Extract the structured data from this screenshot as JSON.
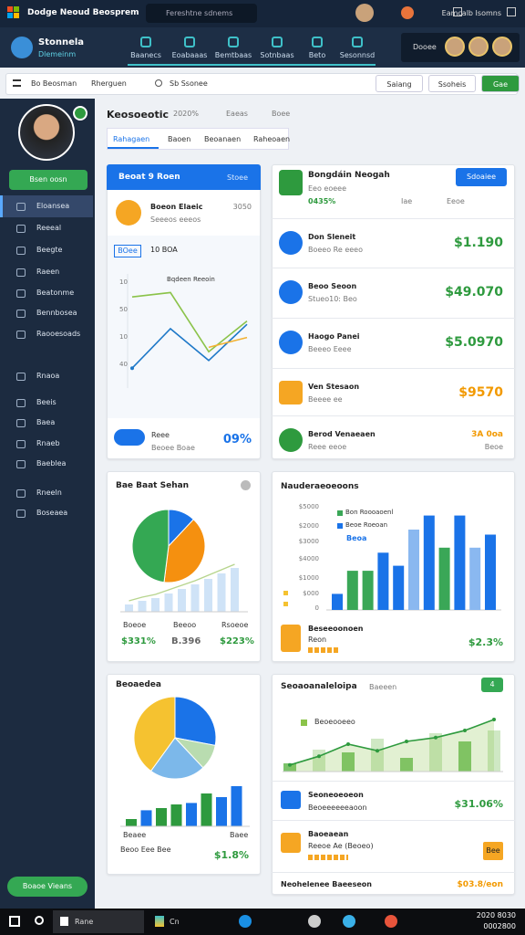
{
  "topbar": {
    "title": "Dodge Neoud Beosprem",
    "search": "Fereshtne sdnems",
    "account": "Eamcalb Isomns"
  },
  "appbar": {
    "brand": "Stonnela",
    "brand_sub": "Dlemeinm",
    "tabs": [
      "Baanecs",
      "Eoabaaas",
      "Bemtbaas",
      "Sotnbaas",
      "Beto",
      "Sesonnsd"
    ],
    "user": "Dooee"
  },
  "toolbar": {
    "menu": "Bo Beosman",
    "dropdown": "Rherguen",
    "search": "Sb Ssonee",
    "buttons": [
      "Saiang",
      "Ssoheis",
      "Gae"
    ]
  },
  "sidebar": {
    "button": "Bsen oosn",
    "items": [
      "Eloansea",
      "Reeeal",
      "Beegte",
      "Raeen",
      "Beatonme",
      "Bennbosea",
      "Raooesoads"
    ],
    "items2": [
      "Rnaoa",
      "Beeis",
      "Baea",
      "Rnaeb",
      "Baeblea",
      "Rneeln",
      "Boseaea"
    ],
    "footer_button": "Boaoe Vieans"
  },
  "header": {
    "title": "Keosoeotic",
    "badge": "2020%",
    "links": [
      "Eaeas",
      "Boee"
    ],
    "tabs": [
      "Rahagaen",
      "Baoen",
      "Beoanaen",
      "Raheoaen"
    ]
  },
  "card_trend": {
    "header": "Beoat 9 Roen",
    "header_right": "Stoee",
    "item": "Boeon Elaeic",
    "item_sub": "Seeeos eeeos",
    "item_value": "3050",
    "tag": "BOee",
    "tag_value": "10 BOA",
    "chart": {
      "type": "line",
      "title": "Bqdeen Reeoin",
      "axis_labels": [
        "10",
        "50",
        "10",
        "40"
      ],
      "ylim": [
        0,
        100
      ],
      "series": [
        {
          "color": "#8bc34a",
          "values": [
            79,
            83,
            29,
            57
          ]
        },
        {
          "color": "#1e78c8",
          "values": [
            14,
            50,
            21,
            54
          ]
        },
        {
          "color": "#f2b233",
          "values": [
            null,
            null,
            33,
            42
          ]
        }
      ]
    },
    "footer_label": "Reee",
    "footer_sub": "Beoee Boae",
    "footer_value": "09%"
  },
  "card_list": {
    "title": "Bongdáin Neogah",
    "subtitle": "Eeo eoeee",
    "stat": "0435%",
    "stat2": "Iae",
    "stat3": "Eeoe",
    "button": "Sdoaiee",
    "rows": [
      {
        "name": "Don Sleneit",
        "sub": "Boeeo Re eeeo",
        "value": "$1.190",
        "color": "#2e9a3e"
      },
      {
        "name": "Beoo Seoon",
        "sub": "Stueo10: Beo",
        "value": "$49.070",
        "color": "#2e9a3e"
      },
      {
        "name": "Haogo Panei",
        "sub": "Beeeo Eeee",
        "value": "$5.0970",
        "color": "#2e9a3e"
      },
      {
        "name": "Ven Stesaon",
        "sub": "Beeee ee",
        "value": "$9570",
        "color": "#f29900"
      },
      {
        "name": "Berod Venaeaen",
        "sub": "Reee eeoe",
        "value": "3A 0oa",
        "color": "#f29900",
        "note": "Beoe"
      }
    ]
  },
  "card_pie": {
    "title": "Bae Baat Sehan",
    "pie": {
      "type": "pie",
      "values": [
        12,
        40,
        48
      ],
      "colors": [
        "#1a73e8",
        "#f5900f",
        "#34a853"
      ]
    },
    "bars": {
      "type": "bar",
      "ylim": [
        0,
        100
      ],
      "values": [
        8,
        12,
        15,
        20,
        25,
        30,
        36,
        42,
        48
      ],
      "color": "#cfe3f7"
    },
    "stats": [
      {
        "label": "Boeoe",
        "value": "$331%",
        "color": "#2e9a3e"
      },
      {
        "label": "Beeoo",
        "value": "B.396",
        "color": "#666666"
      },
      {
        "label": "Rsoeoe",
        "value": "$223%",
        "color": "#2e9a3e"
      }
    ]
  },
  "card_columns": {
    "title": "Nauderaeoeoons",
    "axis_labels": [
      "$5000",
      "$2000",
      "$3000",
      "$4000",
      "$1000",
      "$000",
      "0"
    ],
    "legend": [
      {
        "name": "Bon Roooaoenl",
        "color": "#3aa757"
      },
      {
        "name": "Beoe Roeoan",
        "color": "#1a73e8"
      }
    ],
    "note": "Beoa",
    "chart": {
      "type": "bar",
      "ylim": [
        0,
        100
      ],
      "values": [
        16,
        39,
        39,
        57,
        44,
        80,
        94,
        62,
        94,
        62,
        75
      ],
      "colors": [
        "#1a73e8",
        "#3aa757",
        "#3aa757",
        "#1a73e8",
        "#1a73e8",
        "#8ab8f0",
        "#1a73e8",
        "#3aa757",
        "#1a73e8",
        "#8ab8f0",
        "#1a73e8"
      ]
    },
    "footer": "Beseeoonoen",
    "footer_sub": "Reon",
    "footer_value": "$2.3%"
  },
  "card_donut": {
    "title": "Beoaedea",
    "pie": {
      "type": "pie",
      "values": [
        28,
        10,
        22,
        40
      ],
      "colors": [
        "#1a73e8",
        "#b9dcb0",
        "#7cb8ea",
        "#f5c230"
      ]
    },
    "bars": {
      "type": "bar",
      "ylim": [
        0,
        100
      ],
      "values": [
        10,
        22,
        25,
        30,
        32,
        45,
        40,
        55
      ],
      "colors": [
        "#2e9a3e",
        "#1a73e8",
        "#2e9a3e",
        "#2e9a3e",
        "#1a73e8",
        "#2e9a3e",
        "#1a73e8",
        "#1a73e8"
      ]
    },
    "labels": [
      "Beaee",
      "Baee"
    ],
    "footer": "Beoo Eee Bee",
    "footer_value": "$1.8%"
  },
  "card_area": {
    "title": "Seoaoanaleloipa",
    "title_sub": "Baeeen",
    "badge": "4",
    "legend": "Beoeooeeo",
    "chart": {
      "type": "area",
      "ylim": [
        0,
        100
      ],
      "line": [
        12,
        28,
        50,
        38,
        55,
        62,
        75,
        95
      ],
      "bars": [
        15,
        40,
        35,
        60,
        25,
        70,
        55,
        75
      ]
    },
    "rows": [
      {
        "name": "Seoneoeoeon",
        "sub": "Beoeeeeeeaoon",
        "value": "$31.06%"
      },
      {
        "name": "Baoeaean",
        "sub": "Reeoe Ae (Beoeo)",
        "value": "Bee"
      }
    ],
    "footer": "Neohelenee Baeeseon",
    "footer_value": "$03.8/eon"
  },
  "taskbar": {
    "search": "Rane",
    "app": "Cn",
    "time": "2020 8030",
    "date": "0002800"
  }
}
